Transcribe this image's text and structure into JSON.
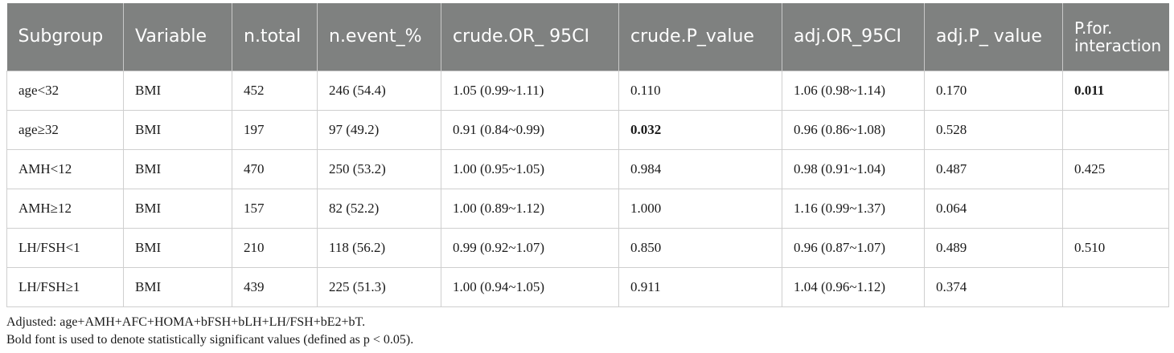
{
  "table": {
    "headers": [
      "Subgroup",
      "Variable",
      "n.total",
      "n.event_%",
      "crude.OR_ 95CI",
      "crude.P_value",
      "adj.OR_95CI",
      "adj.P_ value",
      "P.for.\ninteraction"
    ],
    "rows": [
      {
        "cells": [
          "age<32",
          "BMI",
          "452",
          "246 (54.4)",
          "1.05 (0.99~1.11)",
          "0.110",
          "1.06 (0.98~1.14)",
          "0.170",
          "0.011"
        ],
        "bold": [
          8
        ]
      },
      {
        "cells": [
          "age≥32",
          "BMI",
          "197",
          "97 (49.2)",
          "0.91 (0.84~0.99)",
          "0.032",
          "0.96 (0.86~1.08)",
          "0.528",
          ""
        ],
        "bold": [
          5
        ]
      },
      {
        "cells": [
          "AMH<12",
          "BMI",
          "470",
          "250 (53.2)",
          "1.00 (0.95~1.05)",
          "0.984",
          "0.98 (0.91~1.04)",
          "0.487",
          "0.425"
        ],
        "bold": []
      },
      {
        "cells": [
          "AMH≥12",
          "BMI",
          "157",
          "82 (52.2)",
          "1.00 (0.89~1.12)",
          "1.000",
          "1.16 (0.99~1.37)",
          "0.064",
          ""
        ],
        "bold": []
      },
      {
        "cells": [
          "LH/FSH<1",
          "BMI",
          "210",
          "118 (56.2)",
          "0.99 (0.92~1.07)",
          "0.850",
          "0.96 (0.87~1.07)",
          "0.489",
          "0.510"
        ],
        "bold": []
      },
      {
        "cells": [
          "LH/FSH≥1",
          "BMI",
          "439",
          "225 (51.3)",
          "1.00 (0.94~1.05)",
          "0.911",
          "1.04 (0.96~1.12)",
          "0.374",
          ""
        ],
        "bold": []
      }
    ]
  },
  "footnotes": {
    "adjusted": "Adjusted: age+AMH+AFC+HOMA+bFSH+bLH+LH/FSH+bE2+bT.",
    "bold_note": "Bold font is used to denote statistically significant values (defined as p < 0.05)."
  }
}
